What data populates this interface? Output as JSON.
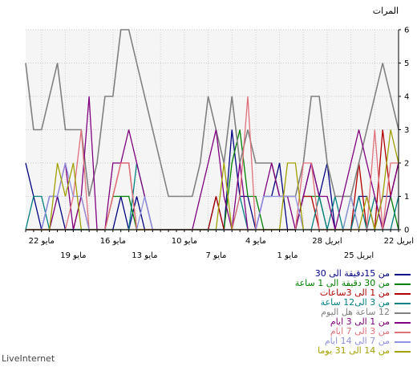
{
  "brand": "LiveInternet",
  "chart_data": {
    "type": "line",
    "ylabel": "المرات",
    "ylim": [
      0,
      6
    ],
    "yticks": [
      0,
      1,
      2,
      3,
      4,
      5,
      6
    ],
    "n_points": 48,
    "x_direction": "right-to-left",
    "grid": true,
    "top_ticks": [
      {
        "index": 0,
        "label": "22 ابريل"
      },
      {
        "index": 9,
        "label": "28 ابريل"
      },
      {
        "index": 18,
        "label": "4 مايو"
      },
      {
        "index": 27,
        "label": "10 مايو"
      },
      {
        "index": 36,
        "label": "16 مايو"
      },
      {
        "index": 45,
        "label": "22 مايو"
      }
    ],
    "bottom_ticks": [
      {
        "index": 5,
        "label": "25 ابريل"
      },
      {
        "index": 14,
        "label": "1 مايو"
      },
      {
        "index": 23,
        "label": "7 مايو"
      },
      {
        "index": 32,
        "label": "13 مايو"
      },
      {
        "index": 41,
        "label": "19 مايو"
      }
    ],
    "series": [
      {
        "name": "من 15دقيقة الى 30",
        "color": "#000080",
        "values": [
          2,
          1,
          1,
          0,
          1,
          1,
          0,
          0,
          0,
          2,
          1,
          2,
          1,
          0,
          0,
          2,
          1,
          1,
          0,
          1,
          1,
          3,
          0,
          1,
          0,
          0,
          0,
          0,
          0,
          0,
          0,
          0,
          0,
          1,
          0,
          1,
          0,
          0,
          0,
          0,
          0,
          0,
          0,
          1,
          1,
          0,
          1,
          2
        ]
      },
      {
        "name": "من 30 دقيقة الى 1 ساعة",
        "color": "#008000",
        "values": [
          0,
          1,
          0,
          0,
          0,
          0,
          1,
          0,
          0,
          0,
          1,
          1,
          1,
          0,
          0,
          0,
          0,
          0,
          1,
          1,
          3,
          2,
          0,
          0,
          0,
          0,
          0,
          0,
          0,
          0,
          0,
          0,
          0,
          0,
          1,
          1,
          1,
          0,
          0,
          0,
          0,
          0,
          0,
          0,
          0,
          0,
          0,
          0
        ]
      },
      {
        "name": "من 1 الى 3ساعات",
        "color": "#b00000",
        "values": [
          2,
          1,
          3,
          0,
          0,
          2,
          0,
          0,
          0,
          0,
          0,
          1,
          1,
          0,
          0,
          0,
          0,
          0,
          0,
          0,
          0,
          0,
          0,
          1,
          0,
          0,
          0,
          0,
          0,
          0,
          0,
          0,
          0,
          0,
          2,
          2,
          1,
          0,
          0,
          0,
          1,
          0,
          0,
          0,
          0,
          0,
          0,
          0
        ]
      },
      {
        "name": "من 3 الى12 ساعة",
        "color": "#008080",
        "values": [
          1,
          0,
          0,
          1,
          0,
          1,
          0,
          0,
          1,
          0,
          1,
          0,
          0,
          0,
          0,
          0,
          0,
          0,
          0,
          0,
          1,
          0,
          0,
          0,
          0,
          0,
          0,
          0,
          0,
          0,
          0,
          0,
          1,
          2,
          0,
          0,
          0,
          0,
          0,
          0,
          0,
          0,
          0,
          0,
          0,
          1,
          1,
          0
        ]
      },
      {
        "name": "12 ساعة هل اليوم",
        "color": "#808080",
        "values": [
          3,
          4,
          5,
          4,
          3,
          2,
          1,
          1,
          1,
          2,
          4,
          4,
          2,
          1,
          1,
          1,
          2,
          2,
          2,
          3,
          2,
          4,
          2,
          3,
          4,
          2,
          1,
          1,
          1,
          1,
          2,
          3,
          4,
          5,
          6,
          6,
          4,
          4,
          2,
          1,
          3,
          3,
          3,
          5,
          4,
          3,
          3,
          5
        ]
      },
      {
        "name": "من 1 الى 3 ايام",
        "color": "#800080",
        "values": [
          2,
          1,
          0,
          1,
          2,
          3,
          2,
          1,
          0,
          1,
          1,
          2,
          1,
          0,
          1,
          1,
          2,
          1,
          0,
          0,
          2,
          0,
          1,
          3,
          2,
          1,
          0,
          0,
          0,
          0,
          0,
          0,
          1,
          2,
          3,
          2,
          2,
          0,
          0,
          4,
          1,
          0,
          2,
          1,
          0,
          0,
          0,
          0
        ]
      },
      {
        "name": "من 3 الى 7 ايام",
        "color": "#e0707a",
        "values": [
          2,
          2,
          0,
          3,
          0,
          0,
          0,
          0,
          0,
          0,
          0,
          2,
          2,
          0,
          0,
          0,
          0,
          0,
          0,
          4,
          1,
          0,
          0,
          0,
          0,
          0,
          0,
          0,
          0,
          0,
          0,
          0,
          0,
          0,
          2,
          2,
          1,
          0,
          0,
          0,
          3,
          1,
          0,
          0,
          0,
          0,
          0,
          0
        ]
      },
      {
        "name": "من 7 الى 14 ايام",
        "color": "#9090e0",
        "values": [
          0,
          0,
          0,
          0,
          0,
          0,
          1,
          0,
          0,
          0,
          0,
          0,
          0,
          1,
          1,
          1,
          1,
          1,
          0,
          0,
          0,
          0,
          0,
          0,
          0,
          0,
          0,
          0,
          0,
          0,
          0,
          0,
          1,
          0,
          0,
          0,
          0,
          0,
          0,
          0,
          1,
          1,
          2,
          1,
          1,
          0,
          0,
          0
        ]
      },
      {
        "name": "من 14 الى 31 يوما",
        "color": "#a0a000",
        "values": [
          2,
          3,
          1,
          0,
          1,
          0,
          0,
          0,
          0,
          0,
          0,
          0,
          0,
          2,
          2,
          0,
          0,
          0,
          0,
          0,
          0,
          0,
          2,
          0,
          0,
          0,
          0,
          0,
          0,
          0,
          0,
          0,
          0,
          0,
          0,
          0,
          0,
          0,
          0,
          0,
          0,
          2,
          1,
          2,
          0,
          0,
          0,
          0
        ]
      }
    ]
  }
}
